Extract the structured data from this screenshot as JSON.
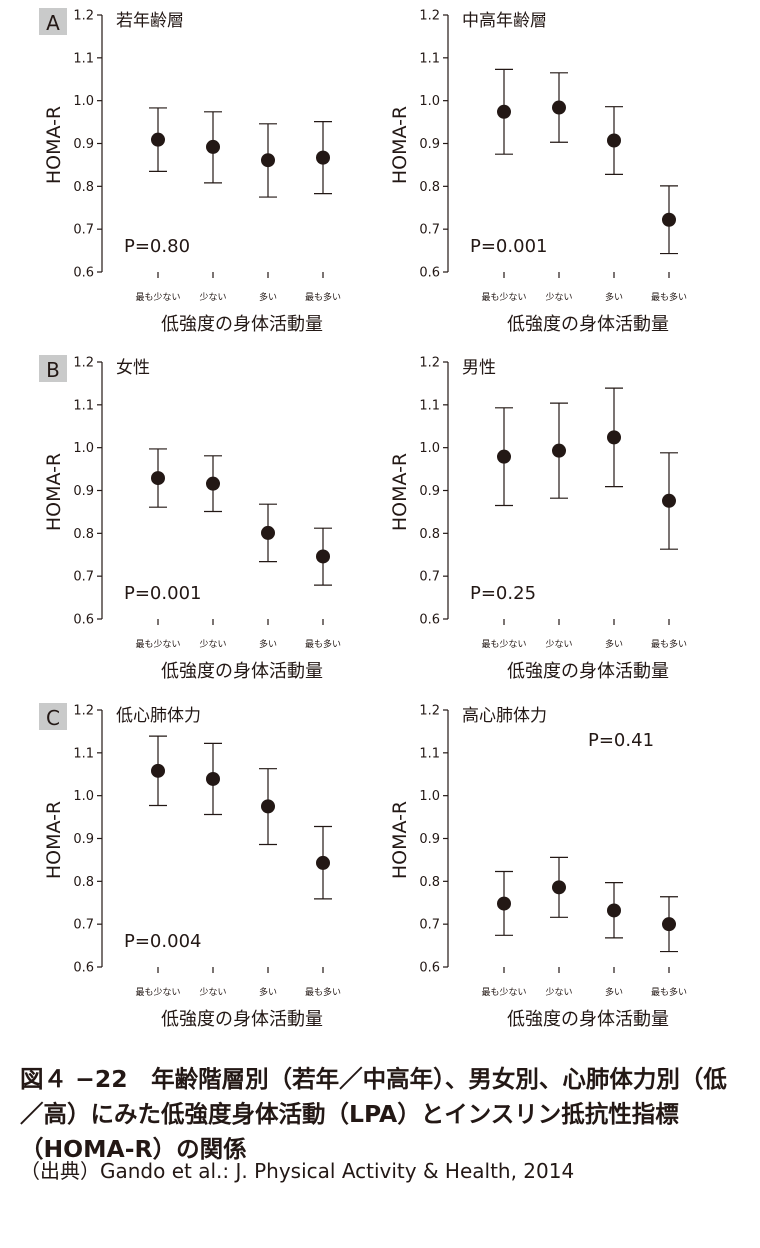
{
  "chart_data": [
    {
      "type": "scatter",
      "panel_label": "A",
      "title": "若年齢層",
      "categories": [
        "最も少ない",
        "少ない",
        "多い",
        "最も多い"
      ],
      "values": [
        0.909,
        0.892,
        0.861,
        0.867
      ],
      "error_low": [
        0.835,
        0.808,
        0.775,
        0.783
      ],
      "error_high": [
        0.983,
        0.974,
        0.946,
        0.951
      ],
      "p_value": "P=0.80",
      "xlabel": "低強度の身体活動量",
      "ylabel": "HOMA-R",
      "ylim": [
        0.6,
        1.2
      ],
      "yticks": [
        "0.6",
        "0.7",
        "0.8",
        "0.9",
        "1.0",
        "1.1",
        "1.2"
      ]
    },
    {
      "type": "scatter",
      "title": "中高年齢層",
      "categories": [
        "最も少ない",
        "少ない",
        "多い",
        "最も多い"
      ],
      "values": [
        0.974,
        0.984,
        0.907,
        0.722
      ],
      "error_low": [
        0.875,
        0.903,
        0.828,
        0.643
      ],
      "error_high": [
        1.073,
        1.065,
        0.986,
        0.801
      ],
      "p_value": "P=0.001",
      "xlabel": "低強度の身体活動量",
      "ylabel": "HOMA-R",
      "ylim": [
        0.6,
        1.2
      ],
      "yticks": [
        "0.6",
        "0.7",
        "0.8",
        "0.9",
        "1.0",
        "1.1",
        "1.2"
      ]
    },
    {
      "type": "scatter",
      "panel_label": "B",
      "title": "女性",
      "categories": [
        "最も少ない",
        "少ない",
        "多い",
        "最も多い"
      ],
      "values": [
        0.929,
        0.916,
        0.801,
        0.746
      ],
      "error_low": [
        0.861,
        0.851,
        0.734,
        0.679
      ],
      "error_high": [
        0.997,
        0.981,
        0.868,
        0.812
      ],
      "p_value": "P=0.001",
      "xlabel": "低強度の身体活動量",
      "ylabel": "HOMA-R",
      "ylim": [
        0.6,
        1.2
      ],
      "yticks": [
        "0.6",
        "0.7",
        "0.8",
        "0.9",
        "1.0",
        "1.1",
        "1.2"
      ]
    },
    {
      "type": "scatter",
      "title": "男性",
      "categories": [
        "最も少ない",
        "少ない",
        "多い",
        "最も多い"
      ],
      "values": [
        0.979,
        0.993,
        1.024,
        0.876
      ],
      "error_low": [
        0.865,
        0.882,
        0.909,
        0.763
      ],
      "error_high": [
        1.093,
        1.104,
        1.139,
        0.988
      ],
      "p_value": "P=0.25",
      "xlabel": "低強度の身体活動量",
      "ylabel": "HOMA-R",
      "ylim": [
        0.6,
        1.2
      ],
      "yticks": [
        "0.6",
        "0.7",
        "0.8",
        "0.9",
        "1.0",
        "1.1",
        "1.2"
      ]
    },
    {
      "type": "scatter",
      "panel_label": "C",
      "title": "低心肺体力",
      "categories": [
        "最も少ない",
        "少ない",
        "多い",
        "最も多い"
      ],
      "values": [
        1.058,
        1.039,
        0.975,
        0.843
      ],
      "error_low": [
        0.977,
        0.956,
        0.886,
        0.759
      ],
      "error_high": [
        1.139,
        1.122,
        1.063,
        0.928
      ],
      "p_value": "P=0.004",
      "xlabel": "低強度の身体活動量",
      "ylabel": "HOMA-R",
      "ylim": [
        0.6,
        1.2
      ],
      "yticks": [
        "0.6",
        "0.7",
        "0.8",
        "0.9",
        "1.0",
        "1.1",
        "1.2"
      ]
    },
    {
      "type": "scatter",
      "title": "高心肺体力",
      "categories": [
        "最も少ない",
        "少ない",
        "多い",
        "最も多い"
      ],
      "values": [
        0.748,
        0.786,
        0.732,
        0.7
      ],
      "error_low": [
        0.674,
        0.716,
        0.668,
        0.636
      ],
      "error_high": [
        0.823,
        0.856,
        0.797,
        0.764
      ],
      "p_value": "P=0.41",
      "p_position": "top",
      "xlabel": "低強度の身体活動量",
      "ylabel": "HOMA-R",
      "ylim": [
        0.6,
        1.2
      ],
      "yticks": [
        "0.6",
        "0.7",
        "0.8",
        "0.9",
        "1.0",
        "1.1",
        "1.2"
      ]
    }
  ],
  "caption": {
    "title": "図４ −22　年齢階層別（若年／中高年）、男女別、心肺体力別（低／高）にみた低強度身体活動（LPA）とインスリン抵抗性指標（HOMA-R）の関係",
    "source": "（出典）Gando et al.: J. Physical Activity & Health, 2014"
  }
}
